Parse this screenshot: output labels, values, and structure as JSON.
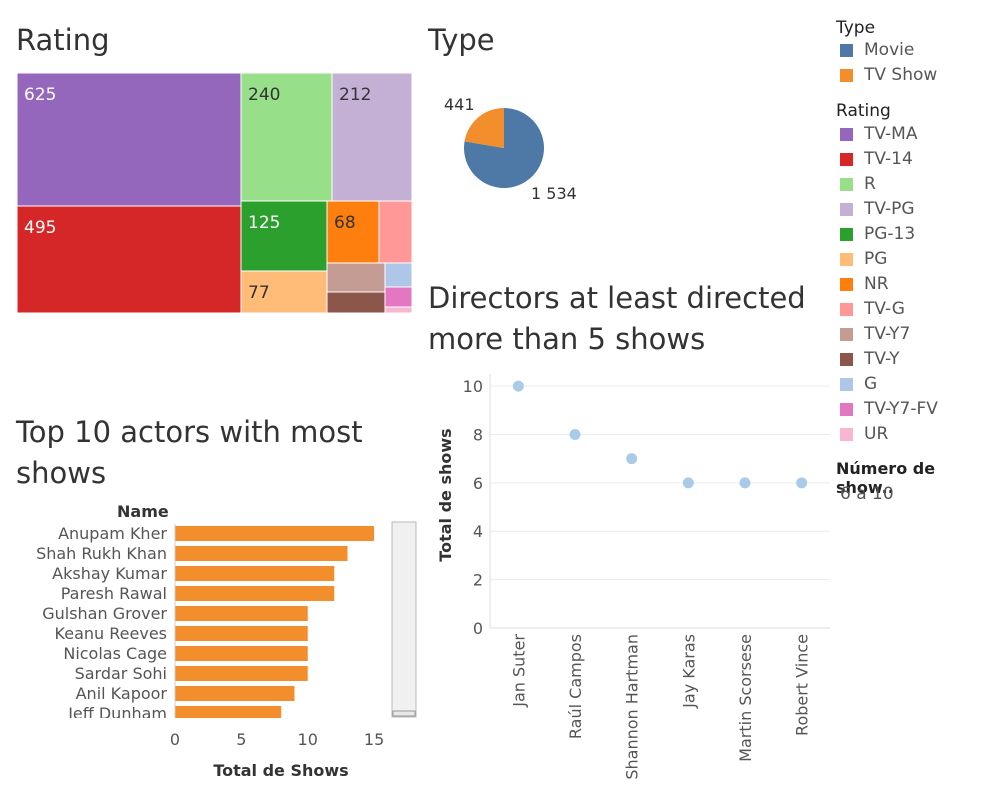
{
  "rating_treemap": {
    "title": "Rating",
    "chart_data": {
      "type": "treemap",
      "cells": [
        {
          "rating": "TV-MA",
          "value": 625,
          "color": "#9467bd",
          "label": "625"
        },
        {
          "rating": "TV-14",
          "value": 495,
          "color": "#d62728",
          "label": "495"
        },
        {
          "rating": "R",
          "value": 240,
          "color": "#98df8a",
          "label": "240"
        },
        {
          "rating": "TV-PG",
          "value": 212,
          "color": "#c5b0d5",
          "label": "212"
        },
        {
          "rating": "PG-13",
          "value": 125,
          "color": "#2ca02c",
          "label": "125"
        },
        {
          "rating": "PG",
          "value": 77,
          "color": "#ffbb78",
          "label": "77"
        },
        {
          "rating": "NR",
          "value": 68,
          "color": "#ff7f0e",
          "label": "68"
        },
        {
          "rating": "TV-G",
          "color": "#ff9896",
          "label": ""
        },
        {
          "rating": "TV-Y7",
          "color": "#c49c94",
          "label": ""
        },
        {
          "rating": "TV-Y",
          "color": "#8c564b",
          "label": ""
        },
        {
          "rating": "G",
          "color": "#aec7e8",
          "label": ""
        },
        {
          "rating": "TV-Y7-FV",
          "color": "#e377c2",
          "label": ""
        },
        {
          "rating": "UR",
          "color": "#f7b6d2",
          "label": ""
        }
      ]
    }
  },
  "type_pie": {
    "title": "Type",
    "chart_data": {
      "type": "pie",
      "slices": [
        {
          "name": "Movie",
          "value": 1534,
          "color": "#4e79a7",
          "label": "1 534"
        },
        {
          "name": "TV Show",
          "value": 441,
          "color": "#f28e2b",
          "label": "441"
        }
      ]
    }
  },
  "actors_bar": {
    "title": "Top 10 actors with most shows",
    "chart_data": {
      "type": "bar",
      "orientation": "horizontal",
      "row_header": "Name",
      "categories": [
        "Anupam Kher",
        "Shah Rukh Khan",
        "Akshay Kumar",
        "Paresh Rawal",
        "Gulshan Grover",
        "Keanu Reeves",
        "Nicolas Cage",
        "Sardar Sohi",
        "Anil Kapoor",
        "Jeff Dunham"
      ],
      "values": [
        15,
        13,
        12,
        12,
        10,
        10,
        10,
        10,
        9,
        8
      ],
      "color": "#f28e2b",
      "xlabel": "Total de Shows",
      "xticks": [
        "0",
        "5",
        "10",
        "15"
      ],
      "xlim": [
        0,
        16.5
      ]
    }
  },
  "directors_scatter": {
    "title": "Directors at least directed more than 5 shows",
    "title_lines": [
      "Directors at least directed",
      "more than 5 shows"
    ],
    "chart_data": {
      "type": "scatter",
      "categories": [
        "Jan Suter",
        "Raúl Campos",
        "Shannon Hartman",
        "Jay Karas",
        "Martin Scorsese",
        "Robert Vince"
      ],
      "values": [
        10,
        8,
        7,
        6,
        6,
        6
      ],
      "color": "#a9cbe8",
      "ylabel": "Total de shows",
      "yticks": [
        "0",
        "2",
        "4",
        "6",
        "8",
        "10"
      ],
      "ylim": [
        0,
        10.5
      ],
      "grid": true
    }
  },
  "legend": {
    "type_title": "Type",
    "type_items": [
      {
        "label": "Movie",
        "color": "#4e79a7"
      },
      {
        "label": "TV Show",
        "color": "#f28e2b"
      }
    ],
    "rating_title": "Rating",
    "rating_items": [
      {
        "label": "TV-MA",
        "color": "#9467bd"
      },
      {
        "label": "TV-14",
        "color": "#d62728"
      },
      {
        "label": "R",
        "color": "#98df8a"
      },
      {
        "label": "TV-PG",
        "color": "#c5b0d5"
      },
      {
        "label": "PG-13",
        "color": "#2ca02c"
      },
      {
        "label": "PG",
        "color": "#ffbb78"
      },
      {
        "label": "NR",
        "color": "#ff7f0e"
      },
      {
        "label": "TV-G",
        "color": "#ff9896"
      },
      {
        "label": "TV-Y7",
        "color": "#c49c94"
      },
      {
        "label": "TV-Y",
        "color": "#8c564b"
      },
      {
        "label": "G",
        "color": "#aec7e8"
      },
      {
        "label": "TV-Y7-FV",
        "color": "#e377c2"
      },
      {
        "label": "UR",
        "color": "#f7b6d2"
      }
    ],
    "shows_title": "Número de show..",
    "shows_value": "6 a 10"
  }
}
